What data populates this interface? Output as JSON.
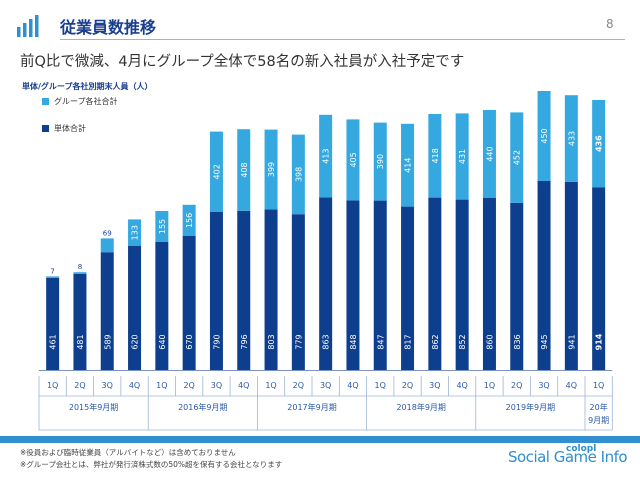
{
  "header": {
    "title": "従業員数推移",
    "page_number": "8",
    "subtitle": "前Q比で微減、4月にグループ全体で58名の新入社員が入社予定です",
    "icon": "bar-chart-icon"
  },
  "footer": {
    "note1": "※役員および臨時従業員（アルバイトなど）は含めておりません",
    "note2": "※グループ会社とは、弊社が発行済株式数の50%超を保有する会社となります",
    "watermark": "Social Game Info",
    "logo_text": "colopl"
  },
  "colors": {
    "dark": "#0e3f8e",
    "light": "#35a8df",
    "accent": "#2f8fcf"
  },
  "chart_data": {
    "type": "bar",
    "stacked": true,
    "ylabel": "単体/グループ各社別期末人員（人）",
    "legend_position": "top-left",
    "grid": false,
    "categories": [
      "1Q",
      "2Q",
      "3Q",
      "4Q",
      "1Q",
      "2Q",
      "3Q",
      "4Q",
      "1Q",
      "2Q",
      "3Q",
      "4Q",
      "1Q",
      "2Q",
      "3Q",
      "4Q",
      "1Q",
      "2Q",
      "3Q",
      "4Q",
      "1Q"
    ],
    "groups": [
      {
        "label": "2015年9月期",
        "count": 4
      },
      {
        "label": "2016年9月期",
        "count": 4
      },
      {
        "label": "2017年9月期",
        "count": 4
      },
      {
        "label": "2018年9月期",
        "count": 4
      },
      {
        "label": "2019年9月期",
        "count": 4
      },
      {
        "label": "20年 9月期",
        "count": 1
      }
    ],
    "series": [
      {
        "name": "単体合計",
        "values": [
          461,
          481,
          589,
          620,
          640,
          670,
          790,
          796,
          803,
          779,
          863,
          848,
          847,
          817,
          862,
          852,
          860,
          836,
          945,
          941,
          914
        ]
      },
      {
        "name": "グループ各社合計",
        "values": [
          7,
          8,
          69,
          133,
          155,
          156,
          402,
          408,
          399,
          398,
          413,
          405,
          390,
          414,
          418,
          431,
          440,
          452,
          450,
          433,
          436
        ]
      }
    ],
    "ylim": [
      0,
      1420
    ]
  }
}
